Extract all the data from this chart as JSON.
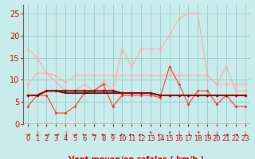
{
  "title": "",
  "xlabel": "Vent moyen/en rafales ( km/h )",
  "xlim": [
    -0.5,
    23.5
  ],
  "ylim": [
    0,
    27
  ],
  "yticks": [
    0,
    5,
    10,
    15,
    20,
    25
  ],
  "xticks": [
    0,
    1,
    2,
    3,
    4,
    5,
    6,
    7,
    8,
    9,
    10,
    11,
    12,
    13,
    14,
    15,
    16,
    17,
    18,
    19,
    20,
    21,
    22,
    23
  ],
  "bg_color": "#c8ecec",
  "grid_color": "#9ecece",
  "series": [
    {
      "x": [
        0,
        1,
        2,
        3,
        4,
        5,
        6,
        7,
        8,
        9,
        10,
        11,
        12,
        13,
        14,
        15,
        16,
        17,
        18,
        19,
        20,
        21,
        22,
        23
      ],
      "y": [
        17,
        15,
        11.5,
        9.5,
        7.5,
        7.5,
        9,
        7.5,
        9.5,
        7.5,
        17,
        13,
        17,
        17,
        17,
        20,
        24,
        25,
        25,
        11,
        9,
        13,
        7.5,
        7.5
      ],
      "color": "#ffaaaa",
      "lw": 0.8,
      "marker": "D",
      "ms": 2.0,
      "zorder": 2
    },
    {
      "x": [
        0,
        1,
        2,
        3,
        4,
        5,
        6,
        7,
        8,
        9,
        10,
        11,
        12,
        13,
        14,
        15,
        16,
        17,
        18,
        19,
        20,
        21,
        22,
        23
      ],
      "y": [
        9,
        11.5,
        11.5,
        11,
        9.5,
        11,
        11,
        11,
        11,
        11,
        11,
        11,
        11,
        11,
        11,
        11,
        11,
        11,
        11,
        11,
        9,
        9,
        9,
        9
      ],
      "color": "#ffaaaa",
      "lw": 0.8,
      "marker": "D",
      "ms": 2.0,
      "zorder": 2
    },
    {
      "x": [
        0,
        1,
        2,
        3,
        4,
        5,
        6,
        7,
        8,
        9,
        10,
        11,
        12,
        13,
        14,
        15,
        16,
        17,
        18,
        19,
        20,
        21,
        22,
        23
      ],
      "y": [
        4,
        6.5,
        6.5,
        2.5,
        2.5,
        4,
        7,
        7.5,
        9,
        4,
        6.5,
        6.5,
        6.5,
        6.5,
        6,
        13,
        9,
        4.5,
        7.5,
        7.5,
        4.5,
        6.5,
        4,
        4
      ],
      "color": "#ff3333",
      "lw": 0.8,
      "marker": "D",
      "ms": 2.0,
      "zorder": 3
    },
    {
      "x": [
        0,
        1,
        2,
        3,
        4,
        5,
        6,
        7,
        8,
        9,
        10,
        11,
        12,
        13,
        14,
        15,
        16,
        17,
        18,
        19,
        20,
        21,
        22,
        23
      ],
      "y": [
        6.5,
        6.5,
        7.5,
        7.5,
        7.5,
        7.5,
        7.5,
        7.5,
        7.5,
        7.5,
        7,
        7,
        7,
        7,
        6.5,
        6.5,
        6.5,
        6.5,
        6.5,
        6.5,
        6.5,
        6.5,
        6.5,
        6.5
      ],
      "color": "#cc0000",
      "lw": 1.2,
      "marker": "D",
      "ms": 2.0,
      "zorder": 4
    },
    {
      "x": [
        0,
        1,
        2,
        3,
        4,
        5,
        6,
        7,
        8,
        9,
        10,
        11,
        12,
        13,
        14,
        15,
        16,
        17,
        18,
        19,
        20,
        21,
        22,
        23
      ],
      "y": [
        6.5,
        6.5,
        7.5,
        7.5,
        7.5,
        7.5,
        7.5,
        7.5,
        7.5,
        7.5,
        7,
        7,
        7,
        7,
        6.5,
        6.5,
        6.5,
        6.5,
        6.5,
        6.5,
        6.5,
        6.5,
        6.5,
        6.5
      ],
      "color": "#880000",
      "lw": 1.2,
      "marker": "D",
      "ms": 2.0,
      "zorder": 4
    },
    {
      "x": [
        0,
        1,
        2,
        3,
        4,
        5,
        6,
        7,
        8,
        9,
        10,
        11,
        12,
        13,
        14,
        15,
        16,
        17,
        18,
        19,
        20,
        21,
        22,
        23
      ],
      "y": [
        6.5,
        6.5,
        7.5,
        7.5,
        7.0,
        7.0,
        7.0,
        7.0,
        7.0,
        7.0,
        7.0,
        7.0,
        7.0,
        7.0,
        6.5,
        6.5,
        6.5,
        6.5,
        6.5,
        6.5,
        6.5,
        6.5,
        6.5,
        6.5
      ],
      "color": "#440000",
      "lw": 1.2,
      "marker": null,
      "ms": 0,
      "zorder": 3
    }
  ],
  "arrow_chars": [
    "→",
    "↓",
    "→",
    "→",
    "↓",
    "→",
    "←",
    "←",
    "←",
    "←",
    "←",
    "←",
    "←",
    "↑",
    "←",
    "↑",
    "↓",
    "↓",
    "↑",
    "↓",
    "↓",
    "→",
    "→",
    "↓"
  ],
  "xlabel_fontsize": 7,
  "tick_fontsize": 6,
  "ytick_fontsize": 7,
  "axis_color": "#cc0000"
}
